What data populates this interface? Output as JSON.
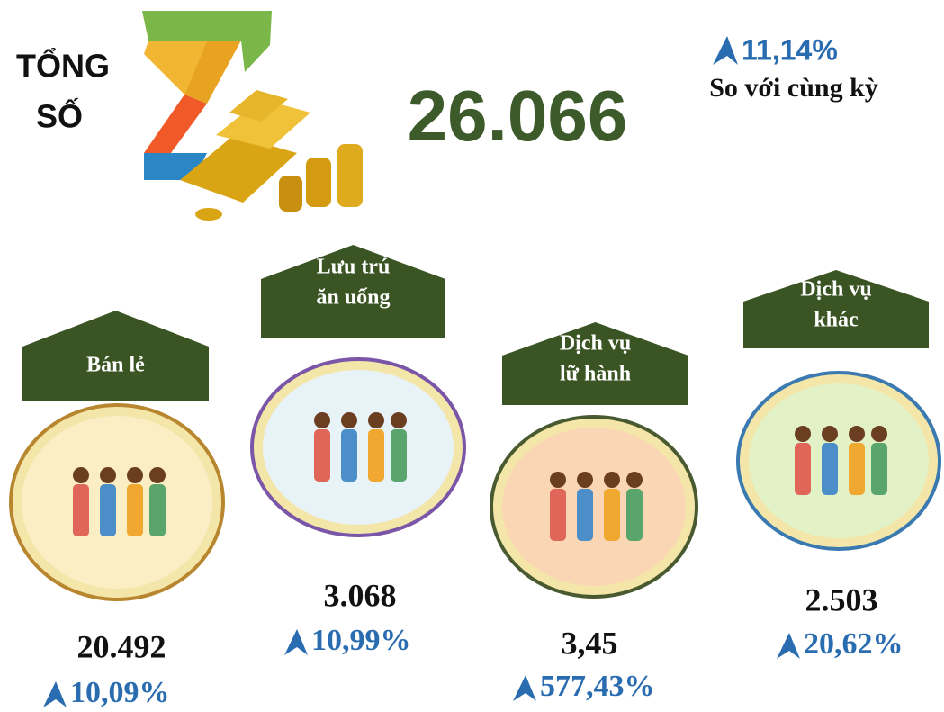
{
  "header": {
    "title": [
      "TỔNG",
      "SỐ"
    ],
    "total": "26.066",
    "change": "11,14%",
    "change_note": "So với cùng kỳ"
  },
  "sectors": [
    {
      "label": [
        "Bán lẻ"
      ],
      "value": "20.492",
      "change": "10,09%"
    },
    {
      "label": [
        "Lưu trú",
        "ăn uống"
      ],
      "value": "3.068",
      "change": "10,99%"
    },
    {
      "label": [
        "Dịch vụ",
        "lữ hành"
      ],
      "value": "3,45",
      "change": "577,43%"
    },
    {
      "label": [
        "Dịch vụ",
        "khác"
      ],
      "value": "2.503",
      "change": "20,62%"
    }
  ]
}
